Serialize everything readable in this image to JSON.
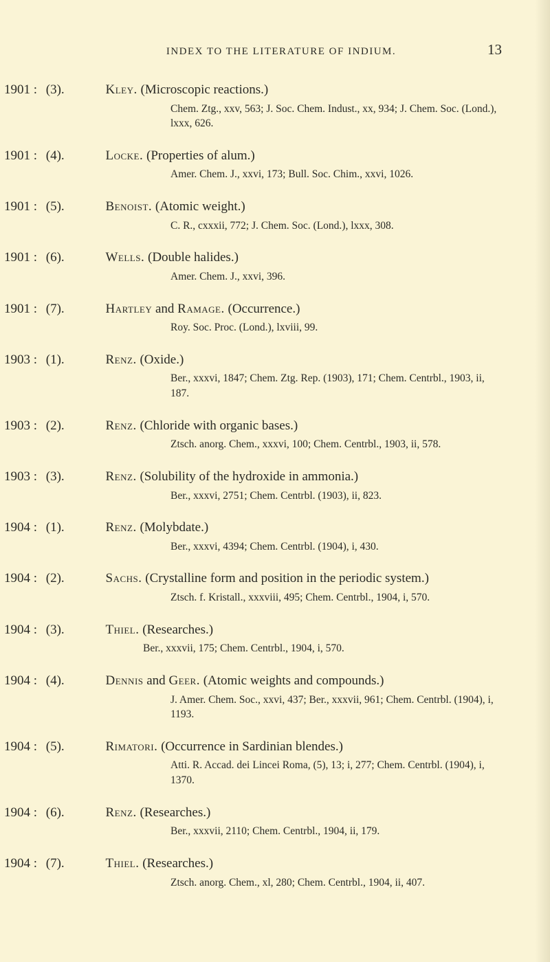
{
  "page": {
    "running_title": "INDEX TO THE LITERATURE OF INDIUM.",
    "page_number": "13"
  },
  "entries": [
    {
      "year": "1901 :",
      "num": "(3).",
      "author": "Kley.",
      "title": "(Microscopic reactions.)",
      "citation": "Chem. Ztg., xxv, 563; J. Soc. Chem. Indust., xx, 934; J. Chem. Soc. (Lond.), lxxx, 626."
    },
    {
      "year": "1901 :",
      "num": "(4).",
      "author": "Locke.",
      "title": "(Properties of alum.)",
      "citation": "Amer. Chem. J., xxvi, 173; Bull. Soc. Chim., xxvi, 1026."
    },
    {
      "year": "1901 :",
      "num": "(5).",
      "author": "Benoist.",
      "title": "(Atomic weight.)",
      "citation": "C. R., cxxxii, 772; J. Chem. Soc. (Lond.), lxxx, 308."
    },
    {
      "year": "1901 :",
      "num": "(6).",
      "author": "Wells.",
      "title": "(Double halides.)",
      "citation": "Amer. Chem. J., xxvi, 396."
    },
    {
      "year": "1901 :",
      "num": "(7).",
      "author_plain": "Hartley",
      "between": " and ",
      "author2": "Ramage.",
      "title": "(Occurrence.)",
      "citation": "Roy. Soc. Proc. (Lond.), lxviii, 99."
    },
    {
      "year": "1903 :",
      "num": "(1).",
      "author": "Renz.",
      "title": "(Oxide.)",
      "citation": "Ber., xxxvi, 1847; Chem. Ztg. Rep. (1903), 171; Chem. Centrbl., 1903, ii, 187."
    },
    {
      "year": "1903 :",
      "num": "(2).",
      "author": "Renz.",
      "title": "(Chloride with organic bases.)",
      "citation": "Ztsch. anorg. Chem., xxxvi, 100; Chem. Centrbl., 1903, ii, 578."
    },
    {
      "year": "1903 :",
      "num": "(3).",
      "author": "Renz.",
      "title": "(Solubility of the hydroxide in ammonia.)",
      "citation": "Ber., xxxvi, 2751; Chem. Centrbl. (1903), ii, 823."
    },
    {
      "year": "1904 :",
      "num": "(1).",
      "author": "Renz.",
      "title": "(Molybdate.)",
      "citation": "Ber., xxxvi, 4394; Chem. Centrbl. (1904), i, 430."
    },
    {
      "year": "1904 :",
      "num": "(2).",
      "author": "Sachs.",
      "title": "(Crystalline form and position in the periodic system.)",
      "citation": "Ztsch. f. Kristall., xxxviii, 495; Chem. Centrbl., 1904, i, 570.",
      "hang": true
    },
    {
      "year": "1904 :",
      "num": "(3).",
      "author": "Thiel.",
      "title": "(Researches.)",
      "citation": "Ber., xxxvii, 175; Chem. Centrbl., 1904, i, 570.",
      "citation_outdent": true
    },
    {
      "year": "1904 :",
      "num": "(4).",
      "author_plain": "Dennis",
      "between": " and ",
      "author2": "Geer.",
      "title": "(Atomic weights and compounds.)",
      "citation": "J. Amer. Chem. Soc., xxvi, 437; Ber., xxxvii, 961; Chem. Centrbl. (1904), i, 1193."
    },
    {
      "year": "1904 :",
      "num": "(5).",
      "author": "Rimatori.",
      "title": "(Occurrence in Sardinian blendes.)",
      "citation": "Atti. R. Accad. dei Lincei Roma, (5), 13; i, 277; Chem. Centrbl. (1904), i, 1370."
    },
    {
      "year": "1904 :",
      "num": "(6).",
      "author": "Renz.",
      "title": "(Researches.)",
      "citation": "Ber., xxxvii, 2110; Chem. Centrbl., 1904, ii, 179."
    },
    {
      "year": "1904 :",
      "num": "(7).",
      "author": "Thiel.",
      "title": "(Researches.)",
      "citation": "Ztsch. anorg. Chem., xl, 280; Chem. Centrbl., 1904, ii, 407."
    }
  ]
}
